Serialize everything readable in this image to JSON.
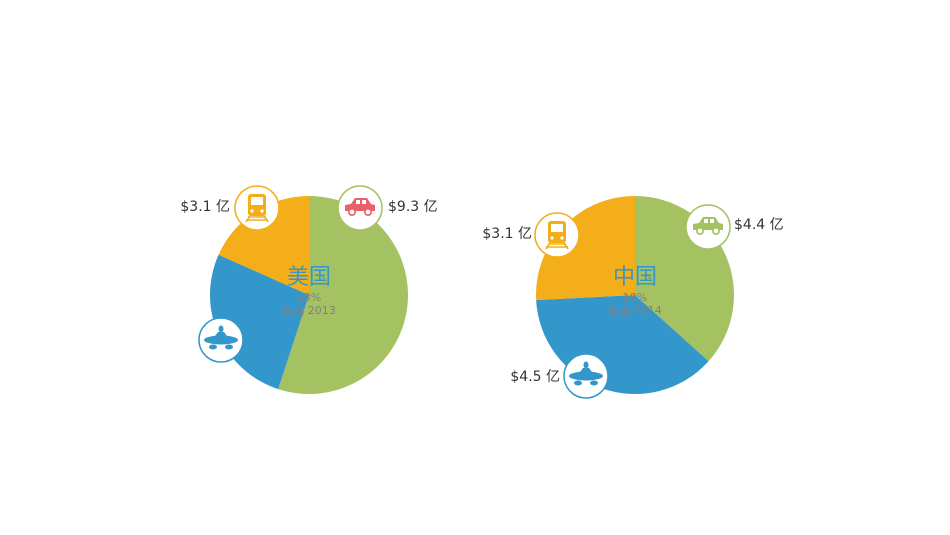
{
  "colors": {
    "green": "#a5c262",
    "blue": "#3497cb",
    "orange": "#f4ae1a",
    "car_us": "#e8616b",
    "car_cn": "#a5c262",
    "plane": "#3497cb",
    "train": "#f4ae1a",
    "center_text": "#3497cb",
    "muted_text": "#808080",
    "value_text": "#333333"
  },
  "chart_data": [
    {
      "type": "pie",
      "title": "美国",
      "subtitle": "23%",
      "note": "数据 2013",
      "slices": [
        {
          "category": "car",
          "icon": "car-icon",
          "label": "$9.3 亿",
          "value": 9.3
        },
        {
          "category": "plane",
          "icon": "airplane-icon",
          "label": "",
          "value": 4.5
        },
        {
          "category": "train",
          "icon": "train-icon",
          "label": "$3.1 亿",
          "value": 3.1
        }
      ]
    },
    {
      "type": "pie",
      "title": "中国",
      "subtitle": "18%",
      "note": "数据 2014",
      "slices": [
        {
          "category": "car",
          "icon": "car-icon",
          "label": "$4.4 亿",
          "value": 4.4
        },
        {
          "category": "plane",
          "icon": "airplane-icon",
          "label": "$4.5 亿",
          "value": 4.5
        },
        {
          "category": "train",
          "icon": "train-icon",
          "label": "$3.1 亿",
          "value": 3.1
        }
      ]
    }
  ]
}
